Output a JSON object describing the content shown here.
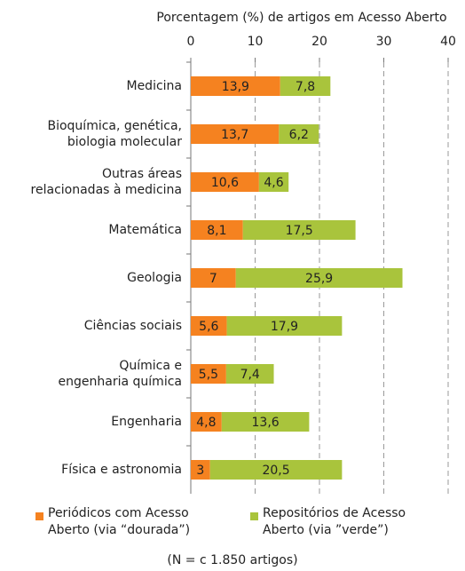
{
  "chart_data": {
    "type": "stacked-barh",
    "x_label": "Porcentagem (%) de artigos em Acesso Aberto",
    "categories": [
      "Medicina",
      "Bioquímica, genética,\nbiologia molecular",
      "Outras áreas\nrelacionadas à medicina",
      "Matemática",
      "Geologia",
      "Ciências sociais",
      "Química e\nengenharia química",
      "Engenharia",
      "Física e astronomia"
    ],
    "series": [
      {
        "name": "Periódicos com Acesso Aberto (via “dourada”)",
        "color": "#f58220",
        "values": [
          13.9,
          13.7,
          10.6,
          8.1,
          7,
          5.6,
          5.5,
          4.8,
          3
        ],
        "value_labels": [
          "13,9",
          "13,7",
          "10,6",
          "8,1",
          "7",
          "5,6",
          "5,5",
          "4,8",
          "3"
        ]
      },
      {
        "name": "Repositórios de Acesso Aberto (via ”verde”)",
        "color": "#a9c43c",
        "values": [
          7.8,
          6.2,
          4.6,
          17.5,
          25.9,
          17.9,
          7.4,
          13.6,
          20.5
        ],
        "value_labels": [
          "7,8",
          "6,2",
          "4,6",
          "17,5",
          "25,9",
          "17,9",
          "7,4",
          "13,6",
          "20,5"
        ]
      }
    ],
    "xlim": [
      0,
      40
    ],
    "xticks": [
      0,
      10,
      20,
      30,
      40
    ],
    "grid": true,
    "legend": "bottom",
    "note": "(N = c 1.850 artigos)"
  }
}
